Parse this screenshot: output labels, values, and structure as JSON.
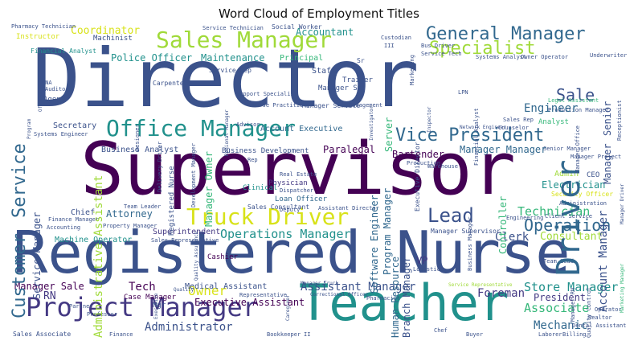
{
  "title": "Word Cloud of Employment Titles",
  "colors": {
    "purple_dark": "#440154",
    "indigo": "#3b528b",
    "blue": "#31688e",
    "teal": "#21918c",
    "green": "#35b779",
    "lime": "#a0da39",
    "yellow": "#d8e219"
  },
  "words": {
    "director": "Director",
    "supervisor": "Supervisor",
    "registered_nurse": "Registered Nurse",
    "teacher": "Teacher",
    "project_manager": "Project Manager",
    "sales_manager": "Sales Manager",
    "office_manager": "Office Manager",
    "general_manager": "General Manager",
    "specialist": "Specialist",
    "driver": "Driver",
    "truck_driver": "Truck Driver",
    "vice_president": "Vice President",
    "lead": "Lead",
    "operation": "Operation",
    "operations_manager": "Operations Manager",
    "customer": "Customer",
    "service": "Service",
    "sales": "Sale",
    "manager": "Manager",
    "senior": "Senior",
    "engineer": "Engineer",
    "account_manager": "Account Manager",
    "administrative_assistant": "Administrative Assistant",
    "coordinator": "Coordinator",
    "accountant": "Accountant",
    "maintenance": "Maintenance",
    "police_officer": "Police Officer",
    "owner": "Owner",
    "manager_owner": "Manager Owner",
    "technician": "Technician",
    "electrician": "Electrician",
    "consultant": "Consultant",
    "store_manager": "Store Manager",
    "associate": "Associate",
    "mechanic": "Mechanic",
    "president": "President",
    "foreman": "Foreman",
    "assistant_manager": "Assistant Manager",
    "executive_assistant": "Executive Assistant",
    "administrator": "Administrator",
    "rn": "RN",
    "manager_sale": "Manager Sale",
    "tech": "Tech",
    "attorney": "Attorney",
    "clerk": "Clerk",
    "vp": "VP",
    "bartender": "Bartender",
    "paralegal": "Paralegal",
    "account_executive": "Account Executive",
    "manager_manager": "Manager Manager",
    "software_engineer": "Software Engineer",
    "program_manager": "Program Manager",
    "human_resource": "Human Resource",
    "branch_manager": "Branch Manager",
    "service_manager": "Service Manager",
    "business_analyst": "Business Analyst",
    "secretary": "Secretary",
    "superintendent": "Superintendent",
    "machine_operator": "Machine Operator",
    "chief": "Chief",
    "principal": "Principal",
    "staff": "Staff",
    "machinist": "Machinist",
    "instructor": "Instructor",
    "agent": "Agent",
    "financial_analyst": "Financial Analyst",
    "sr": "Sr",
    "medical_assistant": "Medical Assistant",
    "clinical": "Clinical",
    "physician": "Physician",
    "real_estate": "Real Estate",
    "controller": "Controller",
    "admin": "Admin",
    "ceo": "CEO",
    "analyst": "Analyst",
    "server": "Server",
    "manager_sr": "Manager Sr",
    "trainer": "Trainer",
    "nurse_practitioner": "Nurse Practitioner",
    "manager_service": "Manager Service",
    "carpenter": "Carpenter",
    "service_rep": "Service Rep",
    "social_worker": "Social Worker",
    "custodian": "Custodian",
    "marketing": "Marketing",
    "bus_driver": "Bus Driver",
    "service_tech": "Service Tech",
    "systems_analyst": "Systems Analyst",
    "owner_operator": "Owner Operator",
    "legal_assistant": "Legal Assistant",
    "production_manager": "Production Manager",
    "manager_office": "Manager Office",
    "underwriter": "Underwriter",
    "receptionist": "Receptionist",
    "counselor": "Counselor",
    "sales_rep": "Sales Rep",
    "manager_project": "Manager Project",
    "manager_supervisor": "Manager Supervisor",
    "operator": "Operator",
    "realtor": "Realtor",
    "dental_assistant": "Dental Assistant",
    "laborer": "Laborer",
    "billing": "Billing",
    "buyer": "Buyer",
    "bookkeeper": "Bookkeeper",
    "finance": "Finance",
    "sales_associate": "Sales Associate",
    "professor": "Professor",
    "partner": "Partner",
    "mgr": "Mgr",
    "case_manager": "Case Manager",
    "cashier": "Cashier",
    "team_leader": "Team Leader",
    "team_lead": "Team Lead",
    "logistic": "Logistic",
    "pharmacist": "Pharmacist",
    "deputy": "Deputy",
    "loan_officer": "Loan Officer",
    "dispatcher": "Dispatcher",
    "sales_consultant": "Sales Consultant",
    "assistant_director": "Assistant Director",
    "executive_director": "Executive Director",
    "systems_engineer": "Systems Engineer",
    "pharmacy_technician": "Pharmacy Technician",
    "service_technician": "Service Technician",
    "network_engineer": "Network Engineer",
    "auditor": "Auditor",
    "officer": "Officer",
    "cna": "CNA",
    "lpn": "LPN",
    "inspector": "Inspector",
    "management": "Management",
    "advisor": "Advisor",
    "finance_manager": "Finance Manager",
    "accounting": "Accounting",
    "property_manager": "Property Manager",
    "sales_representative": "Sales Representative",
    "quality": "Quality",
    "representative": "Representative",
    "manager_truck": "Manager Truck",
    "caregiver": "Caregiver",
    "correctional_officer": "Correctional Officer",
    "service_representative": "Service Representative",
    "chef": "Chef",
    "engineering": "Engineering",
    "client_service": "Client Service",
    "security_officer": "Security Officer",
    "administration": "Administration",
    "manager_rn": "Manager RN",
    "nurse": "Nurse",
    "manager_account": "Manager Account",
    "manager_driver": "Manager Driver",
    "business_manager": "Business Manager",
    "warehouse": "Warehouse",
    "production": "Production",
    "designer": "Designer",
    "investigator": "Investigator",
    "support_specialist": "Support Specialist",
    "regional_manager": "Regional Manager",
    "development_manager": "Development Manager",
    "delivery_driver": "Delivery Driver",
    "quality_assurance": "Quality Assurance",
    "quality_control": "Quality Control",
    "marketing_manager": "Marketing Manager",
    "executive": "Executive",
    "business_development": "Business Development",
    "it": "II",
    "iii": "III",
    "senior_manager": "Senior Manager",
    "manager_engineer": "Manager Engineer",
    "manager_general": "Manager General",
    "ssr": "Rep",
    "specialist_small": "Specialist",
    "lead_small": "Lead",
    "program": "Program",
    "manager_small": "Manager"
  }
}
